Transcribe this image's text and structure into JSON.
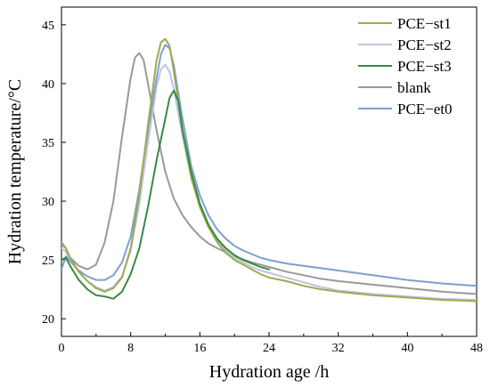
{
  "chart_data": {
    "type": "line",
    "title": "",
    "xlabel": "Hydration age /h",
    "ylabel": "Hydration temperature/°C",
    "xlim": [
      0,
      48
    ],
    "ylim": [
      18.5,
      46.5
    ],
    "xticks": [
      0,
      8,
      16,
      24,
      32,
      40,
      48
    ],
    "yticks": [
      20,
      25,
      30,
      35,
      40,
      45
    ],
    "grid": false,
    "legend_position": "top-right",
    "series": [
      {
        "name": "PCE−st1",
        "color": "#9aad4e",
        "x": [
          0,
          0.5,
          1,
          2,
          3,
          4,
          5,
          6,
          7,
          8,
          9,
          10,
          11,
          11.5,
          12,
          12.5,
          13,
          14,
          15,
          16,
          17,
          18,
          19,
          20,
          21,
          22,
          23,
          24,
          26,
          28,
          30,
          32,
          36,
          40,
          44,
          48
        ],
        "y": [
          26.3,
          26.0,
          25.2,
          24.0,
          23.2,
          22.6,
          22.3,
          22.6,
          23.5,
          26.0,
          30.5,
          36.5,
          42.0,
          43.5,
          43.8,
          43.2,
          41.0,
          36.0,
          32.0,
          29.5,
          27.8,
          26.5,
          25.6,
          25.0,
          24.6,
          24.2,
          23.8,
          23.5,
          23.2,
          22.8,
          22.5,
          22.3,
          22.0,
          21.8,
          21.6,
          21.5
        ]
      },
      {
        "name": "PCE−st2",
        "color": "#c4c0e3",
        "x": [
          0,
          0.5,
          1,
          2,
          3,
          4,
          5,
          6,
          7,
          8,
          9,
          10,
          11,
          11.5,
          12,
          12.5,
          13,
          14,
          15,
          16,
          17,
          18,
          19,
          20,
          21,
          22,
          23,
          24,
          26,
          28,
          30,
          32,
          36,
          40,
          44,
          48
        ],
        "y": [
          26.0,
          25.7,
          25.0,
          24.0,
          23.2,
          22.7,
          22.4,
          22.7,
          23.6,
          25.8,
          29.8,
          35.0,
          39.8,
          41.2,
          41.6,
          41.0,
          39.5,
          35.5,
          32.0,
          29.5,
          27.8,
          26.6,
          25.8,
          25.2,
          24.8,
          24.4,
          24.1,
          23.9,
          23.5,
          23.1,
          22.7,
          22.4,
          22.1,
          21.9,
          21.7,
          21.6
        ]
      },
      {
        "name": "PCE−st3",
        "color": "#3a8a40",
        "x": [
          0,
          0.5,
          1,
          2,
          3,
          4,
          5,
          6,
          7,
          8,
          9,
          10,
          11,
          12,
          12.5,
          13,
          13.5,
          14,
          15,
          16,
          17,
          18,
          19,
          20,
          21,
          22,
          23,
          24
        ],
        "y": [
          25.0,
          25.2,
          24.5,
          23.3,
          22.5,
          22.0,
          21.9,
          21.7,
          22.3,
          23.8,
          26.0,
          29.5,
          33.5,
          37.0,
          38.8,
          39.4,
          38.5,
          36.0,
          32.5,
          29.8,
          28.0,
          26.8,
          26.0,
          25.4,
          25.0,
          24.7,
          24.4,
          24.2
        ]
      },
      {
        "name": "blank",
        "color": "#999999",
        "x": [
          0,
          0.5,
          1,
          2,
          3,
          4,
          5,
          6,
          7,
          8,
          8.5,
          9,
          9.5,
          10,
          11,
          12,
          13,
          14,
          15,
          16,
          17,
          18,
          20,
          22,
          24,
          26,
          28,
          30,
          32,
          36,
          40,
          44,
          48
        ],
        "y": [
          26.5,
          26.0,
          25.2,
          24.5,
          24.2,
          24.6,
          26.5,
          30.0,
          35.5,
          40.5,
          42.2,
          42.6,
          42.0,
          40.0,
          36.0,
          32.5,
          30.2,
          28.8,
          27.8,
          27.0,
          26.4,
          26.0,
          25.3,
          24.8,
          24.4,
          24.0,
          23.7,
          23.4,
          23.2,
          22.9,
          22.6,
          22.3,
          22.1
        ]
      },
      {
        "name": "PCE−et0",
        "color": "#7e9fd0",
        "x": [
          0,
          0.5,
          1,
          2,
          3,
          4,
          5,
          6,
          7,
          8,
          9,
          10,
          11,
          11.5,
          12,
          12.5,
          13,
          14,
          15,
          16,
          17,
          18,
          19,
          20,
          21,
          22,
          23,
          24,
          26,
          28,
          30,
          32,
          36,
          40,
          44,
          48
        ],
        "y": [
          24.2,
          25.3,
          24.9,
          24.1,
          23.6,
          23.3,
          23.3,
          23.7,
          24.8,
          27.0,
          31.0,
          36.0,
          40.5,
          42.5,
          43.3,
          43.0,
          41.5,
          37.0,
          33.0,
          30.5,
          28.8,
          27.6,
          26.8,
          26.2,
          25.8,
          25.5,
          25.2,
          25.0,
          24.7,
          24.5,
          24.3,
          24.1,
          23.7,
          23.3,
          23.0,
          22.8
        ]
      }
    ]
  }
}
